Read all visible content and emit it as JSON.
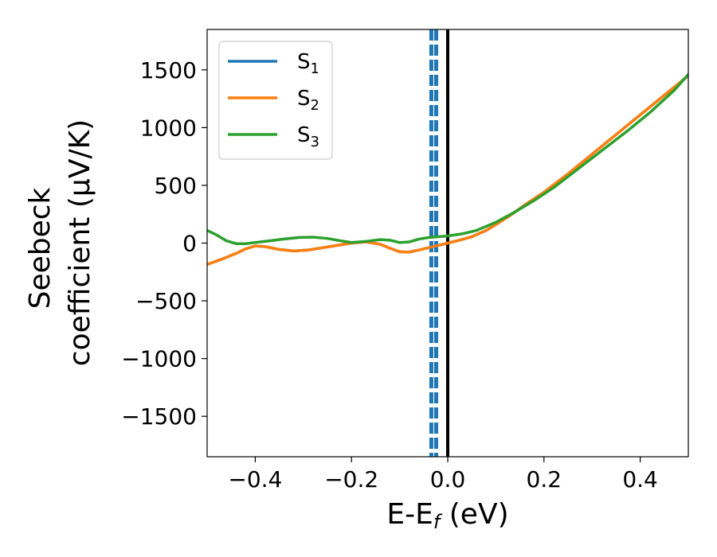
{
  "chart_data": {
    "type": "line",
    "xlabel": "E-E",
    "xlabel_sub": "f",
    "xlabel_unit": " (eV)",
    "ylabel_line1": "Seebeck",
    "ylabel_line2": "coefficient  (μV/K)",
    "xlim": [
      -0.5,
      0.5
    ],
    "ylim": [
      -1850,
      1850
    ],
    "xticks": [
      -0.4,
      -0.2,
      0.0,
      0.2,
      0.4
    ],
    "xtick_labels": [
      "−0.4",
      "−0.2",
      "0.0",
      "0.2",
      "0.4"
    ],
    "yticks": [
      -1500,
      -1000,
      -500,
      0,
      500,
      1000,
      1500
    ],
    "ytick_labels": [
      "−1500",
      "−1000",
      "−500",
      "0",
      "500",
      "1000",
      "1500"
    ],
    "grid": false,
    "legend_position": "top-left",
    "series": [
      {
        "name": "S",
        "sub": "1",
        "color": "#1f77b4",
        "x": [
          -0.5,
          -0.47,
          -0.44,
          -0.42,
          -0.4,
          -0.38,
          -0.35,
          -0.32,
          -0.29,
          -0.26,
          -0.23,
          -0.2,
          -0.17,
          -0.14,
          -0.12,
          -0.1,
          -0.08,
          -0.06,
          -0.04,
          -0.02,
          0.0,
          0.02,
          0.05,
          0.08,
          0.1,
          0.13,
          0.16,
          0.2,
          0.25,
          0.3,
          0.35,
          0.4,
          0.45,
          0.5
        ],
        "y": [
          -185,
          -140,
          -90,
          -50,
          -25,
          -30,
          -55,
          -68,
          -60,
          -40,
          -20,
          0,
          10,
          -10,
          -45,
          -75,
          -78,
          -60,
          -40,
          -20,
          0,
          20,
          55,
          110,
          160,
          240,
          330,
          440,
          600,
          770,
          940,
          1110,
          1280,
          1450
        ]
      },
      {
        "name": "S",
        "sub": "2",
        "color": "#ff7f0e",
        "x": [
          -0.5,
          -0.47,
          -0.44,
          -0.42,
          -0.4,
          -0.38,
          -0.35,
          -0.32,
          -0.29,
          -0.26,
          -0.23,
          -0.2,
          -0.17,
          -0.14,
          -0.12,
          -0.1,
          -0.08,
          -0.06,
          -0.04,
          -0.02,
          0.0,
          0.02,
          0.05,
          0.08,
          0.1,
          0.13,
          0.16,
          0.2,
          0.25,
          0.3,
          0.35,
          0.4,
          0.45,
          0.5
        ],
        "y": [
          -185,
          -140,
          -90,
          -50,
          -25,
          -30,
          -55,
          -68,
          -60,
          -40,
          -20,
          0,
          10,
          -10,
          -45,
          -75,
          -78,
          -60,
          -40,
          -20,
          0,
          20,
          55,
          110,
          160,
          240,
          330,
          440,
          600,
          770,
          940,
          1110,
          1280,
          1450
        ]
      },
      {
        "name": "S",
        "sub": "3",
        "color": "#2ca02c",
        "x": [
          -0.5,
          -0.48,
          -0.46,
          -0.44,
          -0.42,
          -0.4,
          -0.37,
          -0.34,
          -0.31,
          -0.28,
          -0.25,
          -0.22,
          -0.2,
          -0.17,
          -0.14,
          -0.12,
          -0.1,
          -0.08,
          -0.06,
          -0.04,
          -0.02,
          0.0,
          0.03,
          0.06,
          0.1,
          0.14,
          0.18,
          0.22,
          0.27,
          0.32,
          0.37,
          0.42,
          0.47,
          0.5
        ],
        "y": [
          110,
          70,
          20,
          -5,
          -5,
          5,
          20,
          35,
          48,
          52,
          40,
          18,
          5,
          15,
          30,
          25,
          5,
          10,
          35,
          48,
          55,
          62,
          80,
          110,
          180,
          270,
          370,
          480,
          640,
          800,
          960,
          1130,
          1320,
          1460
        ]
      }
    ],
    "vlines": [
      {
        "x": 0.0,
        "color": "#000000",
        "style": "solid"
      },
      {
        "x": -0.034,
        "color": "#1f77b4",
        "style": "dashed"
      },
      {
        "x": -0.024,
        "color": "#1f77b4",
        "style": "dashed"
      }
    ]
  }
}
